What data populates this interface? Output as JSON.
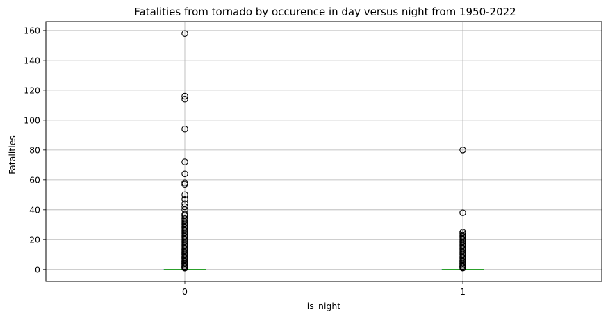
{
  "chart_data": {
    "type": "boxplot",
    "title": "Fatalities from tornado by occurence in day versus night from 1950-2022",
    "xlabel": "is_night",
    "ylabel": "Fatalities",
    "categories": [
      "0",
      "1"
    ],
    "ylim": [
      -8,
      166
    ],
    "yticks": [
      0,
      20,
      40,
      60,
      80,
      100,
      120,
      140,
      160
    ],
    "grid": true,
    "colors": {
      "grid": "#b0b0b0",
      "median": "#2ca02c",
      "outlier": "#000000",
      "axis": "#000000"
    },
    "series": [
      {
        "name": "0",
        "q1": 0,
        "median": 0,
        "q3": 0,
        "whisker_low": 0,
        "whisker_high": 0,
        "outliers": [
          1,
          1,
          1,
          1,
          2,
          2,
          2,
          3,
          3,
          3,
          4,
          4,
          4,
          5,
          5,
          5,
          6,
          6,
          7,
          7,
          8,
          8,
          9,
          9,
          10,
          10,
          11,
          11,
          12,
          12,
          13,
          13,
          14,
          15,
          16,
          17,
          18,
          19,
          20,
          21,
          22,
          23,
          24,
          25,
          26,
          27,
          28,
          29,
          30,
          31,
          32,
          33,
          34,
          36,
          37,
          40,
          42,
          44,
          47,
          50,
          57,
          58,
          64,
          72,
          94,
          114,
          116,
          158
        ]
      },
      {
        "name": "1",
        "q1": 0,
        "median": 0,
        "q3": 0,
        "whisker_low": 0,
        "whisker_high": 0,
        "outliers": [
          1,
          1,
          1,
          2,
          2,
          2,
          3,
          3,
          3,
          4,
          4,
          5,
          5,
          6,
          6,
          7,
          8,
          9,
          10,
          11,
          12,
          13,
          14,
          15,
          16,
          17,
          18,
          19,
          20,
          21,
          22,
          23,
          24,
          25,
          38,
          80
        ]
      }
    ]
  }
}
